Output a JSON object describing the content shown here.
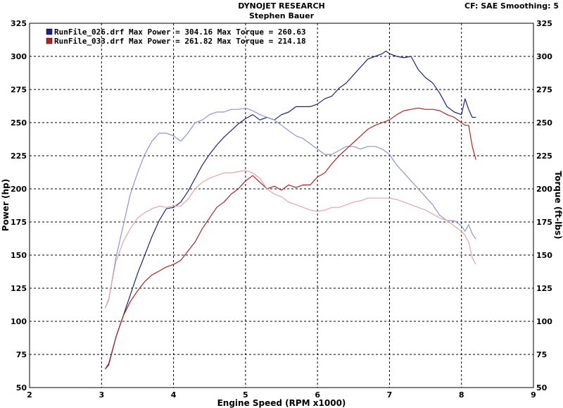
{
  "header": {
    "title": "DYNOJET RESEARCH",
    "subtitle": "Stephen Bauer",
    "info": "CF: SAE  Smoothing: 5"
  },
  "colors": {
    "blue": "#1a237e",
    "blue_light": "#8a95d8",
    "red": "#b22222",
    "red_light": "#e8a4a4"
  },
  "chart_data": {
    "type": "line",
    "title": "DYNOJET RESEARCH",
    "subtitle": "Stephen Bauer",
    "xlabel": "Engine Speed (RPM x1000)",
    "ylabel_left": "Power (hp)",
    "ylabel_right": "Torque (ft-lbs)",
    "xlim": [
      2,
      9
    ],
    "ylim": [
      50,
      325
    ],
    "x_ticks": [
      "2",
      "3",
      "4",
      "5",
      "6",
      "7",
      "8",
      "9"
    ],
    "y_ticks": [
      "50",
      "75",
      "100",
      "125",
      "150",
      "175",
      "200",
      "225",
      "250",
      "275",
      "300",
      "325"
    ],
    "grid": true,
    "legend_position": "top-left",
    "legend": [
      {
        "name": "RunFile_026.drf",
        "text": "RunFile_026.drf Max Power = 304.16    Max Torque = 260.63",
        "color": "#1a237e"
      },
      {
        "name": "RunFile_033.drf",
        "text": "RunFile_033.drf Max Power = 261.82    Max Torque = 214.18",
        "color": "#b22222"
      }
    ],
    "series": [
      {
        "name": "RunFile_026.drf",
        "measure": "Power",
        "color": "#1a237e",
        "x": [
          3.05,
          3.1,
          3.2,
          3.3,
          3.4,
          3.5,
          3.6,
          3.7,
          3.8,
          3.9,
          4.0,
          4.1,
          4.2,
          4.3,
          4.4,
          4.5,
          4.6,
          4.7,
          4.8,
          4.9,
          5.0,
          5.1,
          5.2,
          5.3,
          5.4,
          5.5,
          5.6,
          5.7,
          5.8,
          5.9,
          6.0,
          6.1,
          6.2,
          6.3,
          6.4,
          6.5,
          6.6,
          6.7,
          6.8,
          6.9,
          6.95,
          7.0,
          7.1,
          7.2,
          7.3,
          7.4,
          7.5,
          7.6,
          7.7,
          7.8,
          7.9,
          8.0,
          8.05,
          8.1,
          8.15,
          8.2
        ],
        "y": [
          64,
          68,
          88,
          104,
          120,
          136,
          150,
          164,
          176,
          185,
          186,
          190,
          198,
          208,
          218,
          226,
          233,
          239,
          244,
          249,
          253,
          256,
          252,
          254,
          252,
          256,
          258,
          262,
          262,
          262,
          264,
          268,
          270,
          276,
          280,
          286,
          292,
          298,
          300,
          302,
          304,
          302,
          300,
          299,
          300,
          290,
          284,
          280,
          272,
          262,
          258,
          256,
          268,
          260,
          254,
          254
        ]
      },
      {
        "name": "RunFile_026.drf",
        "measure": "Torque",
        "color": "#8a95d8",
        "x": [
          3.05,
          3.1,
          3.2,
          3.3,
          3.4,
          3.5,
          3.6,
          3.7,
          3.8,
          3.9,
          4.0,
          4.1,
          4.2,
          4.3,
          4.4,
          4.5,
          4.6,
          4.7,
          4.8,
          4.9,
          5.0,
          5.1,
          5.2,
          5.3,
          5.4,
          5.5,
          5.6,
          5.7,
          5.8,
          5.9,
          6.0,
          6.1,
          6.2,
          6.3,
          6.4,
          6.5,
          6.6,
          6.7,
          6.8,
          6.9,
          7.0,
          7.1,
          7.2,
          7.3,
          7.4,
          7.5,
          7.6,
          7.7,
          7.8,
          7.9,
          8.0,
          8.05,
          8.1,
          8.15,
          8.2
        ],
        "y": [
          110,
          116,
          148,
          172,
          196,
          212,
          226,
          236,
          242,
          242,
          240,
          236,
          242,
          250,
          252,
          256,
          258,
          258,
          260,
          260,
          261,
          259,
          256,
          254,
          252,
          248,
          244,
          240,
          238,
          234,
          230,
          226,
          226,
          229,
          232,
          232,
          230,
          232,
          232,
          230,
          226,
          218,
          212,
          206,
          200,
          194,
          188,
          180,
          176,
          176,
          172,
          168,
          173,
          166,
          162
        ]
      },
      {
        "name": "RunFile_033.drf",
        "measure": "Power",
        "color": "#b22222",
        "x": [
          3.05,
          3.1,
          3.2,
          3.3,
          3.4,
          3.5,
          3.6,
          3.7,
          3.8,
          3.9,
          4.0,
          4.1,
          4.2,
          4.3,
          4.4,
          4.5,
          4.6,
          4.7,
          4.8,
          4.9,
          5.0,
          5.1,
          5.2,
          5.3,
          5.4,
          5.5,
          5.6,
          5.7,
          5.8,
          5.9,
          6.0,
          6.1,
          6.2,
          6.3,
          6.4,
          6.5,
          6.6,
          6.7,
          6.8,
          6.9,
          7.0,
          7.1,
          7.2,
          7.3,
          7.4,
          7.5,
          7.6,
          7.7,
          7.8,
          7.9,
          8.0,
          8.05,
          8.1,
          8.15,
          8.2
        ],
        "y": [
          64,
          67,
          88,
          104,
          115,
          123,
          130,
          135,
          138,
          141,
          143,
          146,
          153,
          160,
          170,
          178,
          186,
          190,
          196,
          200,
          206,
          210,
          205,
          200,
          202,
          199,
          203,
          201,
          203,
          203,
          209,
          212,
          219,
          225,
          230,
          235,
          240,
          245,
          248,
          250,
          252,
          256,
          259,
          260,
          261,
          260,
          260,
          259,
          256,
          254,
          250,
          248,
          248,
          232,
          222
        ]
      },
      {
        "name": "RunFile_033.drf",
        "measure": "Torque",
        "color": "#e8a4a4",
        "x": [
          3.05,
          3.1,
          3.2,
          3.3,
          3.4,
          3.5,
          3.6,
          3.7,
          3.8,
          3.9,
          4.0,
          4.1,
          4.2,
          4.3,
          4.4,
          4.5,
          4.6,
          4.7,
          4.8,
          4.9,
          5.0,
          5.1,
          5.2,
          5.3,
          5.4,
          5.5,
          5.6,
          5.7,
          5.8,
          5.9,
          6.0,
          6.1,
          6.2,
          6.3,
          6.4,
          6.5,
          6.6,
          6.7,
          6.8,
          6.9,
          7.0,
          7.1,
          7.2,
          7.3,
          7.4,
          7.5,
          7.6,
          7.7,
          7.8,
          7.9,
          8.0,
          8.05,
          8.1,
          8.15,
          8.2
        ],
        "y": [
          110,
          117,
          145,
          160,
          170,
          178,
          182,
          185,
          187,
          186,
          187,
          187,
          192,
          200,
          205,
          208,
          210,
          212,
          212,
          213,
          214,
          212,
          208,
          200,
          196,
          194,
          190,
          188,
          186,
          184,
          183,
          184,
          186,
          186,
          188,
          190,
          191,
          193,
          193,
          193,
          193,
          192,
          190,
          188,
          186,
          184,
          181,
          178,
          176,
          172,
          168,
          165,
          160,
          148,
          143
        ]
      }
    ]
  }
}
